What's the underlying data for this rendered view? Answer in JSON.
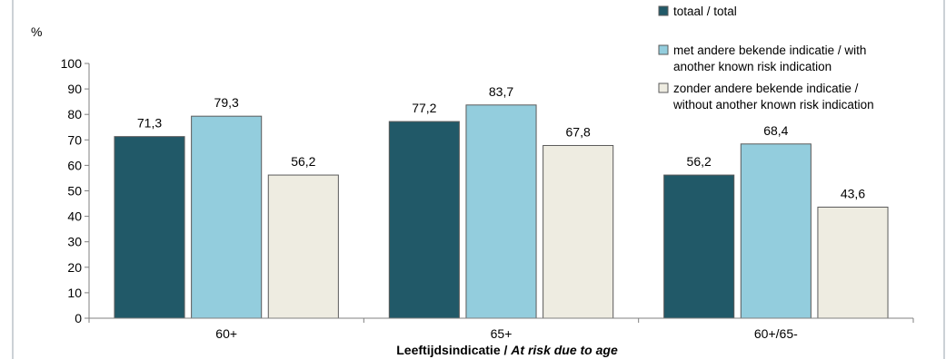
{
  "chart_data": {
    "type": "bar",
    "ylabel": "%",
    "xlabel_regular": "Leeftijdsindicatie / ",
    "xlabel_italic": "At risk due to age",
    "ylim": [
      0,
      100
    ],
    "ytick_step": 10,
    "categories": [
      "60+",
      "65+",
      "60+/65-"
    ],
    "series": [
      {
        "name": "totaal / total",
        "color": "#215968",
        "values": [
          71.3,
          77.2,
          56.2
        ],
        "labels": [
          "71,3",
          "77,2",
          "56,2"
        ]
      },
      {
        "name": "met andere bekende indicatie / with another known risk indication",
        "name_lines": [
          "met andere bekende indicatie / with",
          "another known risk indication"
        ],
        "color": "#93cddd",
        "values": [
          79.3,
          83.7,
          68.4
        ],
        "labels": [
          "79,3",
          "83,7",
          "68,4"
        ]
      },
      {
        "name": "zonder andere bekende indicatie / without another known risk indication",
        "name_lines": [
          "zonder andere bekende indicatie /",
          "without another known risk indication"
        ],
        "color": "#eeece1",
        "values": [
          56.2,
          67.8,
          43.6
        ],
        "labels": [
          "56,2",
          "67,8",
          "43,6"
        ]
      }
    ],
    "legend_position": "top-right",
    "grid": false
  }
}
